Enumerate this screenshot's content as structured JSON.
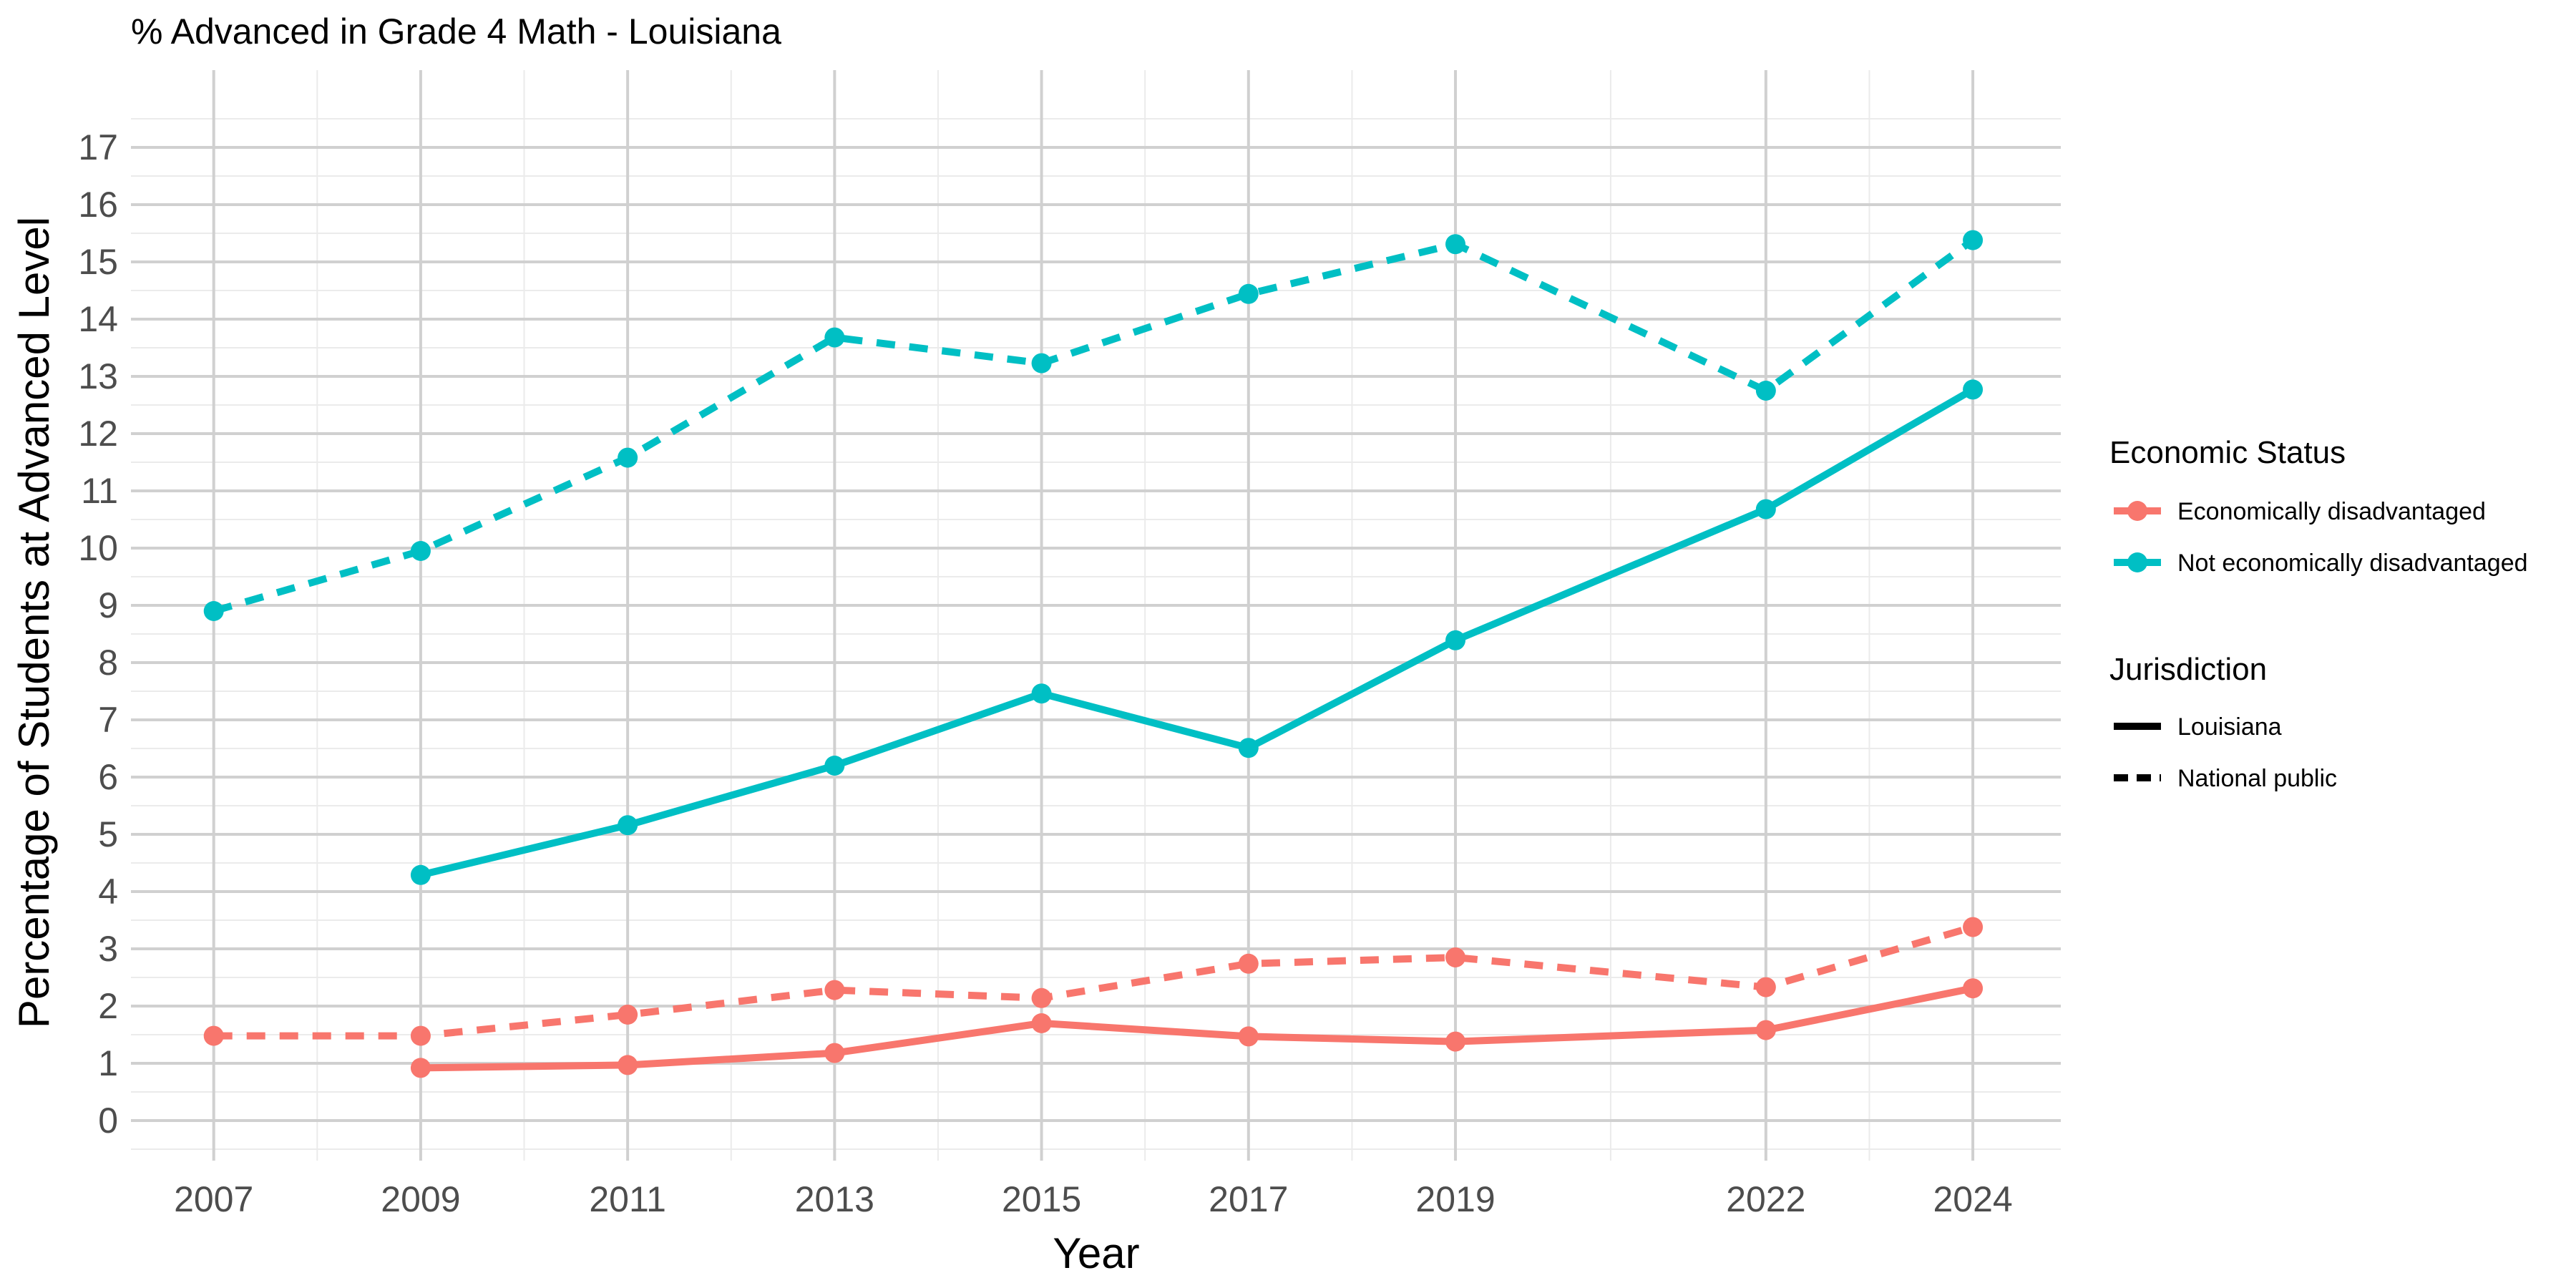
{
  "chart_data": {
    "type": "line",
    "title": "% Advanced in Grade 4 Math - Louisiana",
    "xlabel": "Year",
    "ylabel": "Percentage of Students at Advanced Level",
    "x_ticks": [
      "2007",
      "2009",
      "2011",
      "2013",
      "2015",
      "2017",
      "2019",
      "2022",
      "2024"
    ],
    "y_ticks": [
      "0",
      "1",
      "2",
      "3",
      "4",
      "5",
      "6",
      "7",
      "8",
      "9",
      "10",
      "11",
      "12",
      "13",
      "14",
      "15",
      "16",
      "17"
    ],
    "xlim": [
      2006.2,
      2024.85
    ],
    "ylim": [
      -0.7,
      18.35
    ],
    "grid": true,
    "legend_position": "right",
    "legends": {
      "color": {
        "title": "Economic Status",
        "entries": [
          {
            "label": "Economically disadvantaged",
            "color": "#F8766D"
          },
          {
            "label": "Not economically disadvantaged",
            "color": "#00BFC4"
          }
        ]
      },
      "linetype": {
        "title": "Jurisdiction",
        "entries": [
          {
            "label": "Louisiana",
            "dash": "solid"
          },
          {
            "label": "National public",
            "dash": "dashed"
          }
        ]
      }
    },
    "series": [
      {
        "status": "Economically disadvantaged",
        "jurisdiction": "Louisiana",
        "color": "#F8766D",
        "dash": "solid",
        "x": [
          2009,
          2011,
          2013,
          2015,
          2017,
          2019,
          2022,
          2024
        ],
        "y": [
          0.92,
          0.97,
          1.18,
          1.7,
          1.47,
          1.38,
          1.58,
          2.31
        ]
      },
      {
        "status": "Economically disadvantaged",
        "jurisdiction": "National public",
        "color": "#F8766D",
        "dash": "dashed",
        "x": [
          2007,
          2009,
          2011,
          2013,
          2015,
          2017,
          2019,
          2022,
          2024
        ],
        "y": [
          1.48,
          1.48,
          1.85,
          2.28,
          2.14,
          2.74,
          2.85,
          2.33,
          3.38
        ]
      },
      {
        "status": "Not economically disadvantaged",
        "jurisdiction": "Louisiana",
        "color": "#00BFC4",
        "dash": "solid",
        "x": [
          2009,
          2011,
          2013,
          2015,
          2017,
          2019,
          2022,
          2024
        ],
        "y": [
          4.29,
          5.16,
          6.2,
          7.46,
          6.51,
          8.39,
          10.68,
          12.77
        ]
      },
      {
        "status": "Not economically disadvantaged",
        "jurisdiction": "National public",
        "color": "#00BFC4",
        "dash": "dashed",
        "x": [
          2007,
          2009,
          2011,
          2013,
          2015,
          2017,
          2019,
          2022,
          2024
        ],
        "y": [
          8.9,
          9.95,
          11.58,
          13.68,
          13.23,
          14.44,
          15.31,
          12.75,
          15.38
        ]
      }
    ]
  }
}
